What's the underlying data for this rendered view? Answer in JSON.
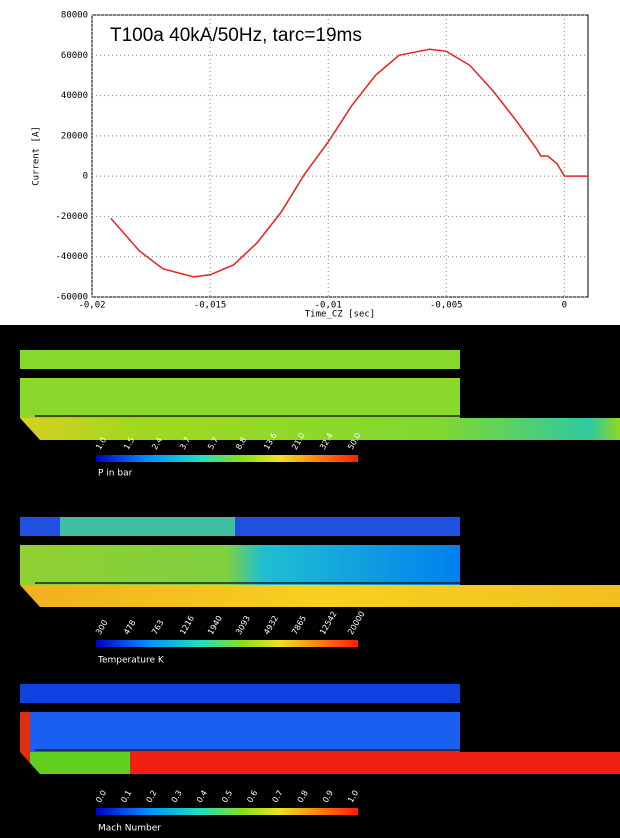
{
  "chart_data": {
    "type": "line",
    "title": "T100a 40kA/50Hz, tarc=19ms",
    "x_label": "Time_CZ [sec]",
    "y_label": "Current [A]",
    "x": [
      -0.0192,
      -0.018,
      -0.017,
      -0.0157,
      -0.015,
      -0.014,
      -0.013,
      -0.012,
      -0.011,
      -0.01,
      -0.009,
      -0.008,
      -0.007,
      -0.0057,
      -0.005,
      -0.004,
      -0.003,
      -0.002,
      -0.0012,
      -0.001,
      -0.0007,
      -0.0003,
      0,
      0.001
    ],
    "values": [
      -21000,
      -37000,
      -46000,
      -50000,
      -49000,
      -44000,
      -33000,
      -18000,
      1000,
      17000,
      35000,
      50000,
      60000,
      63000,
      62000,
      55000,
      42000,
      27000,
      14000,
      10000,
      10000,
      6000,
      0,
      0
    ],
    "color": "#e8201e",
    "xlim": [
      -0.02,
      0.001
    ],
    "xticks": [
      {
        "value": -0.02,
        "label": "-0,02"
      },
      {
        "value": -0.015,
        "label": "-0,015"
      },
      {
        "value": -0.01,
        "label": "-0,01"
      },
      {
        "value": -0.005,
        "label": "-0,005"
      },
      0
    ],
    "ylim": [
      -60000,
      80000
    ],
    "yticks": [
      -60000,
      -40000,
      -20000,
      0,
      20000,
      40000,
      60000,
      80000
    ],
    "grid": true
  },
  "colorbars": [
    {
      "title": "P in bar",
      "ticks": [
        "1.0",
        "1.5",
        "2.4",
        "3.7",
        "5.7",
        "8.8",
        "13.6",
        "21.0",
        "32.4",
        "50.0"
      ]
    },
    {
      "title": "Temperature K",
      "ticks": [
        "300",
        "478",
        "763",
        "1216",
        "1940",
        "3093",
        "4932",
        "7865",
        "12542",
        "20000"
      ]
    },
    {
      "title": "Mach Number",
      "ticks": [
        "0.0",
        "0.1",
        "0.2",
        "0.3",
        "0.4",
        "0.5",
        "0.6",
        "0.7",
        "0.8",
        "0.9",
        "1.0"
      ]
    }
  ]
}
